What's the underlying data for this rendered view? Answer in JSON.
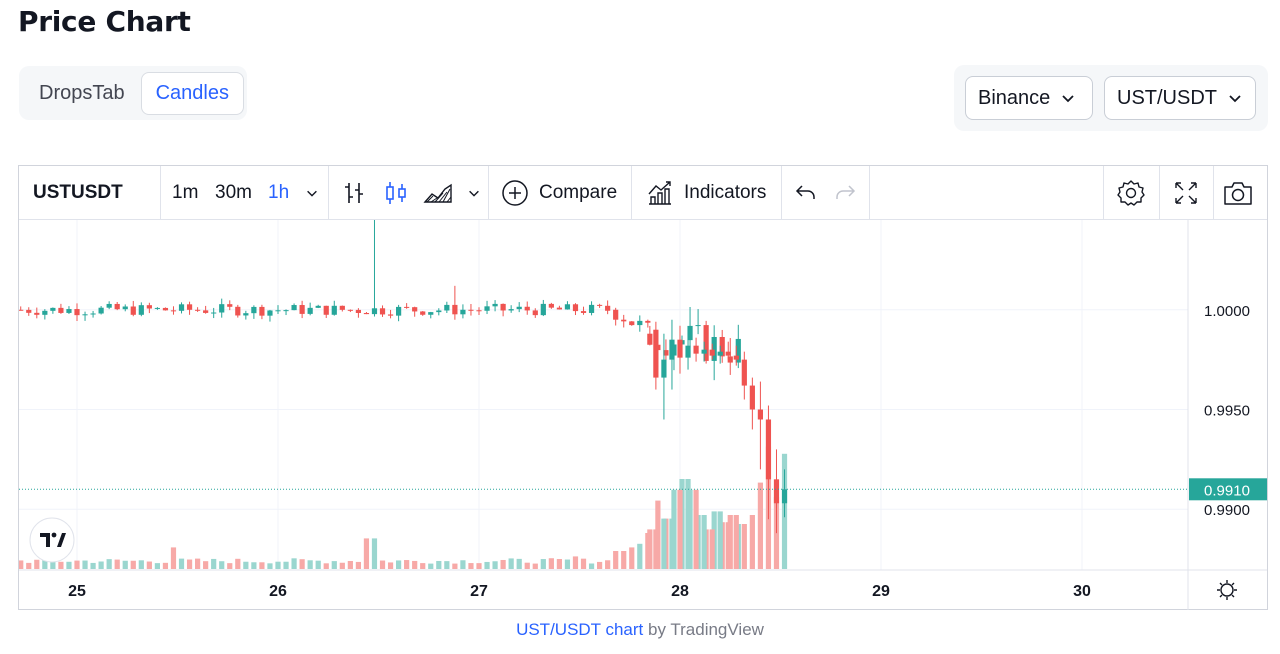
{
  "page": {
    "title": "Price Chart"
  },
  "tabs": [
    {
      "label": "DropsTab",
      "active": false
    },
    {
      "label": "Candles",
      "active": true
    }
  ],
  "selectors": {
    "exchange": "Binance",
    "pair": "UST/USDT"
  },
  "toolbar": {
    "symbol": "USTUSDT",
    "intervals": [
      {
        "label": "1m",
        "active": false
      },
      {
        "label": "30m",
        "active": false
      },
      {
        "label": "1h",
        "active": true
      }
    ],
    "compare_label": "Compare",
    "indicators_label": "Indicators"
  },
  "footer": {
    "link_text": "UST/USDT chart",
    "suffix": " by TradingView"
  },
  "colors": {
    "up": "#26a69a",
    "down": "#ef5350",
    "up_volume": "#9ad6cf",
    "down_volume": "#f7a9a7",
    "accent": "#2962ff",
    "grid": "#f0f3fa"
  },
  "chart_data": {
    "type": "candlestick",
    "x_ticks": [
      "25",
      "26",
      "27",
      "28",
      "29",
      "30"
    ],
    "y_ticks": [
      "1.0000",
      "0.9950",
      "0.9900"
    ],
    "ylim": [
      0.9852,
      1.0045
    ],
    "last_price": {
      "value": 0.991,
      "label": "0.9910"
    },
    "grid": true,
    "volume_shown": true,
    "segments": [
      {
        "start_day": 24.72,
        "end_day": 27.68,
        "open": 1.0,
        "close": 1.0,
        "wobble": 0.0003
      },
      {
        "start_day": 27.68,
        "end_day": 27.85,
        "open": 1.0,
        "close": 0.9988,
        "wobble": 0.0006
      },
      {
        "start_day": 27.85,
        "end_day": 28.32,
        "open": 0.9988,
        "close": 0.9979,
        "wobble": 0.001
      }
    ],
    "wicks": [
      {
        "day": 26.46,
        "high": 1.0045,
        "low": 0.9998
      },
      {
        "day": 26.88,
        "high": 1.0012,
        "low": 0.9995
      }
    ],
    "candles": [
      {
        "day": 27.88,
        "open": 0.999,
        "high": 0.9994,
        "low": 0.996,
        "close": 0.9966
      },
      {
        "day": 27.92,
        "open": 0.9966,
        "high": 0.9988,
        "low": 0.9945,
        "close": 0.9975
      },
      {
        "day": 27.96,
        "open": 0.9975,
        "high": 0.9995,
        "low": 0.996,
        "close": 0.9985
      },
      {
        "day": 28.0,
        "open": 0.9985,
        "high": 0.9992,
        "low": 0.9968,
        "close": 0.9976
      },
      {
        "day": 28.04,
        "open": 0.9976,
        "high": 0.9988,
        "low": 0.997,
        "close": 0.9982
      },
      {
        "day": 28.08,
        "open": 0.9982,
        "high": 0.9986,
        "low": 0.9974,
        "close": 0.9978
      },
      {
        "day": 28.12,
        "open": 0.9978,
        "high": 0.9984,
        "low": 0.9974,
        "close": 0.998
      },
      {
        "day": 28.16,
        "open": 0.998,
        "high": 0.9983,
        "low": 0.9975,
        "close": 0.9977
      },
      {
        "day": 28.2,
        "open": 0.9977,
        "high": 0.9982,
        "low": 0.9973,
        "close": 0.9979
      },
      {
        "day": 28.24,
        "open": 0.9979,
        "high": 0.9984,
        "low": 0.9975,
        "close": 0.9977
      },
      {
        "day": 28.28,
        "open": 0.9977,
        "high": 0.9982,
        "low": 0.9972,
        "close": 0.9975
      },
      {
        "day": 28.32,
        "open": 0.9975,
        "high": 0.9979,
        "low": 0.9955,
        "close": 0.9962
      },
      {
        "day": 28.36,
        "open": 0.9962,
        "high": 0.9966,
        "low": 0.994,
        "close": 0.995
      },
      {
        "day": 28.4,
        "open": 0.995,
        "high": 0.9964,
        "low": 0.992,
        "close": 0.9945
      },
      {
        "day": 28.44,
        "open": 0.9945,
        "high": 0.9952,
        "low": 0.9895,
        "close": 0.9915
      },
      {
        "day": 28.48,
        "open": 0.9915,
        "high": 0.993,
        "low": 0.9888,
        "close": 0.9903
      },
      {
        "day": 28.52,
        "open": 0.9903,
        "high": 0.992,
        "low": 0.9896,
        "close": 0.991
      }
    ],
    "volume_events": [
      {
        "day": 25.48,
        "level": 0.12
      },
      {
        "day": 26.46,
        "level": 0.17
      },
      {
        "day": 27.48,
        "level": 0.07
      },
      {
        "day": 27.7,
        "level": 0.1
      },
      {
        "day": 27.74,
        "level": 0.12
      },
      {
        "day": 27.78,
        "level": 0.14
      },
      {
        "day": 27.82,
        "level": 0.2
      },
      {
        "day": 27.86,
        "level": 0.22
      },
      {
        "day": 27.9,
        "level": 0.38
      },
      {
        "day": 27.94,
        "level": 0.28
      },
      {
        "day": 27.98,
        "level": 0.44
      },
      {
        "day": 28.02,
        "level": 0.5
      },
      {
        "day": 28.06,
        "level": 0.44
      },
      {
        "day": 28.1,
        "level": 0.3
      },
      {
        "day": 28.14,
        "level": 0.22
      },
      {
        "day": 28.18,
        "level": 0.32
      },
      {
        "day": 28.22,
        "level": 0.26
      },
      {
        "day": 28.26,
        "level": 0.3
      },
      {
        "day": 28.3,
        "level": 0.25
      },
      {
        "day": 28.34,
        "level": 0.3
      },
      {
        "day": 28.38,
        "level": 0.48
      },
      {
        "day": 28.42,
        "level": 0.68
      },
      {
        "day": 28.46,
        "level": 0.4
      },
      {
        "day": 28.5,
        "level": 0.64
      },
      {
        "day": 28.54,
        "level": 0.5
      },
      {
        "day": 28.58,
        "level": 0.18
      }
    ]
  }
}
